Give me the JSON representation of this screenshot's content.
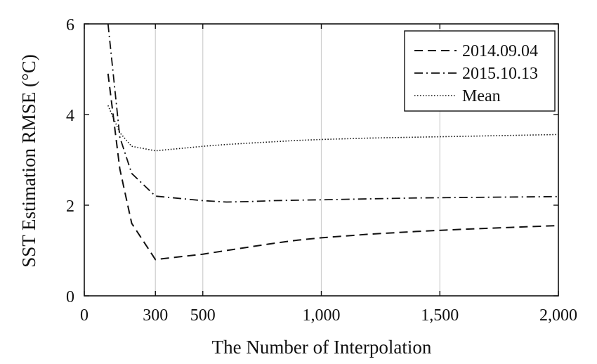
{
  "chart_data": {
    "type": "line",
    "title": "",
    "xlabel": "The Number of Interpolation",
    "ylabel": "SST Estimation RMSE (°C)",
    "xlim": [
      0,
      2000
    ],
    "ylim": [
      0,
      6
    ],
    "xticks": [
      0,
      300,
      500,
      1000,
      1500,
      2000
    ],
    "xtick_labels": [
      "0",
      "300",
      "500",
      "1,000",
      "1,500",
      "2,000"
    ],
    "yticks": [
      0,
      2,
      4,
      6
    ],
    "ytick_labels": [
      "0",
      "2",
      "4",
      "6"
    ],
    "grid": "vertical",
    "legend_position": "top-right",
    "series": [
      {
        "name": "2014.09.04",
        "style": "dashed",
        "x": [
          100,
          150,
          200,
          300,
          400,
          500,
          600,
          700,
          800,
          900,
          1000,
          1200,
          1400,
          1600,
          1800,
          2000
        ],
        "y": [
          4.9,
          2.8,
          1.6,
          0.8,
          0.86,
          0.92,
          1.0,
          1.08,
          1.16,
          1.23,
          1.28,
          1.36,
          1.42,
          1.47,
          1.51,
          1.55
        ]
      },
      {
        "name": "2015.10.13",
        "style": "dashdot",
        "x": [
          100,
          150,
          200,
          300,
          400,
          500,
          600,
          700,
          800,
          900,
          1000,
          1200,
          1400,
          1600,
          1800,
          2000
        ],
        "y": [
          6.0,
          3.5,
          2.7,
          2.2,
          2.15,
          2.1,
          2.07,
          2.08,
          2.1,
          2.11,
          2.12,
          2.14,
          2.16,
          2.17,
          2.18,
          2.19
        ]
      },
      {
        "name": "Mean",
        "style": "dotted",
        "x": [
          100,
          150,
          200,
          300,
          400,
          500,
          600,
          700,
          800,
          900,
          1000,
          1200,
          1400,
          1600,
          1800,
          2000
        ],
        "y": [
          4.2,
          3.6,
          3.3,
          3.2,
          3.25,
          3.3,
          3.34,
          3.37,
          3.4,
          3.43,
          3.45,
          3.48,
          3.5,
          3.52,
          3.54,
          3.56
        ]
      }
    ]
  }
}
